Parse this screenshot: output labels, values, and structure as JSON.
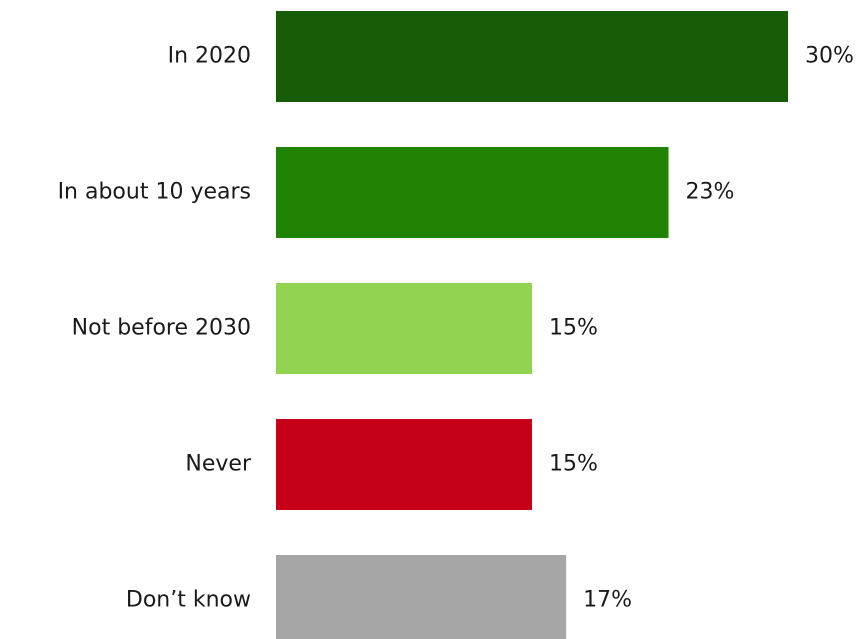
{
  "chart_data": {
    "type": "bar",
    "orientation": "horizontal",
    "categories": [
      "In 2020",
      "In about 10 years",
      "Not before 2030",
      "Never",
      "Don’t know"
    ],
    "values": [
      30,
      23,
      15,
      15,
      17
    ],
    "value_labels": [
      "30%",
      "23%",
      "15%",
      "15%",
      "17%"
    ],
    "colors": [
      "#175d07",
      "#218304",
      "#93d352",
      "#c60019",
      "#a6a6a6"
    ],
    "unit": "%",
    "xlim": [
      0,
      30
    ],
    "title": "",
    "xlabel": "",
    "ylabel": "",
    "grid": false,
    "legend": "none"
  }
}
